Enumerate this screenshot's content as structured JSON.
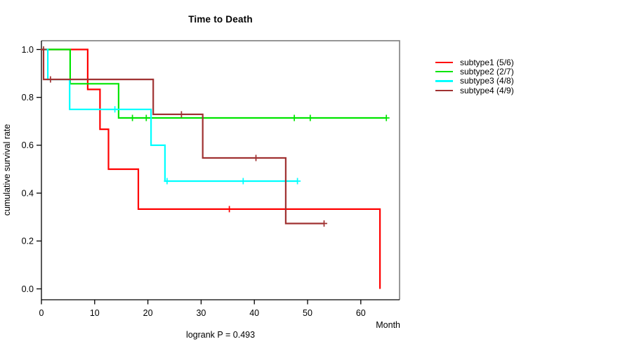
{
  "title": "Time to Death",
  "footer": "logrank P = 0.493",
  "axes": {
    "xlabel": "Month",
    "ylabel": "cumulative survival rate",
    "x_tick_labels": [
      "0",
      "10",
      "20",
      "30",
      "40",
      "50",
      "60"
    ],
    "x_tick_values": [
      0,
      10,
      20,
      30,
      40,
      50,
      60
    ],
    "y_tick_labels": [
      "0.0",
      "0.2",
      "0.4",
      "0.6",
      "0.8",
      "1.0"
    ],
    "y_tick_values": [
      0,
      0.2,
      0.4,
      0.6,
      0.8,
      1.0
    ]
  },
  "colors": {
    "axis": "#000000",
    "frame_gray": "#878787",
    "background": "#ffffff"
  },
  "chart_data": {
    "type": "line",
    "subtype": "kaplan-meier-step",
    "title": "Time to Death",
    "xlabel": "Month",
    "ylabel": "cumulative survival rate",
    "xlim": [
      0,
      67
    ],
    "ylim": [
      0,
      1
    ],
    "grid": false,
    "legend_position": "right",
    "annotation": "logrank P = 0.493",
    "series": [
      {
        "name": "subtype1 (5/6)",
        "color": "#FF0000",
        "points": [
          [
            0,
            1.0
          ],
          [
            8.7,
            0.833
          ],
          [
            11.0,
            0.667
          ],
          [
            12.6,
            0.5
          ],
          [
            18.2,
            0.333
          ],
          [
            63.6,
            0.0
          ]
        ],
        "end_x": 63.6,
        "censor_marks": [
          [
            35.3,
            0.333
          ]
        ]
      },
      {
        "name": "subtype2 (2/7)",
        "color": "#00E500",
        "points": [
          [
            0,
            1.0
          ],
          [
            5.4,
            0.857
          ],
          [
            14.5,
            0.714
          ]
        ],
        "end_x": 64.8,
        "censor_marks": [
          [
            17.1,
            0.714
          ],
          [
            19.7,
            0.714
          ],
          [
            47.5,
            0.714
          ],
          [
            50.5,
            0.714
          ],
          [
            64.8,
            0.714
          ]
        ]
      },
      {
        "name": "subtype3 (4/8)",
        "color": "#00FFFF",
        "points": [
          [
            0,
            1.0
          ],
          [
            1.2,
            0.875
          ],
          [
            5.3,
            0.75
          ],
          [
            20.6,
            0.6
          ],
          [
            23.2,
            0.45
          ]
        ],
        "end_x": 48.1,
        "censor_marks": [
          [
            13.8,
            0.75
          ],
          [
            23.6,
            0.45
          ],
          [
            37.9,
            0.45
          ],
          [
            48.1,
            0.45
          ]
        ]
      },
      {
        "name": "subtype4 (4/9)",
        "color": "#A03232",
        "points": [
          [
            0,
            1.0
          ],
          [
            0.4,
            0.875
          ],
          [
            21.0,
            0.729
          ],
          [
            30.3,
            0.547
          ],
          [
            45.9,
            0.273
          ]
        ],
        "end_x": 53.1,
        "censor_marks": [
          [
            0.4,
            1.0
          ],
          [
            1.7,
            0.875
          ],
          [
            26.3,
            0.729
          ],
          [
            40.3,
            0.547
          ],
          [
            53.1,
            0.273
          ]
        ]
      }
    ]
  }
}
